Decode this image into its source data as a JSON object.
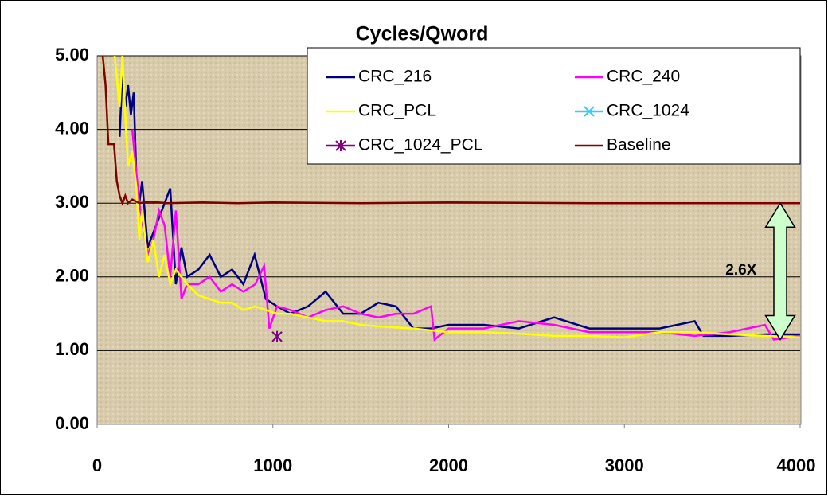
{
  "chart_data": {
    "type": "line",
    "title": "Cycles/Qword",
    "xlim": [
      0,
      4000
    ],
    "xticks": [
      0,
      1000,
      2000,
      3000,
      4000
    ],
    "ylim": [
      0,
      5
    ],
    "yticks": [
      {
        "value": 0,
        "label": "0.00"
      },
      {
        "value": 1,
        "label": "1.00"
      },
      {
        "value": 2,
        "label": "2.00"
      },
      {
        "value": 3,
        "label": "3.00"
      },
      {
        "value": 4,
        "label": "4.00"
      },
      {
        "value": 5,
        "label": "5.00"
      }
    ],
    "grid": true,
    "legend": "top",
    "annotations": [
      {
        "text": "2.6X",
        "x": 3800,
        "y": 2.0
      }
    ],
    "series": [
      {
        "name": "CRC_216",
        "color": "#000080",
        "x": [
          128,
          144,
          160,
          176,
          192,
          208,
          224,
          240,
          256,
          288,
          320,
          352,
          384,
          416,
          448,
          480,
          512,
          576,
          640,
          704,
          768,
          832,
          896,
          960,
          1024,
          1100,
          1200,
          1300,
          1400,
          1500,
          1600,
          1700,
          1800,
          1900,
          2000,
          2200,
          2400,
          2600,
          2800,
          3000,
          3200,
          3400,
          3450,
          3600,
          3800,
          4000
        ],
        "values": [
          3.9,
          4.8,
          4.3,
          4.6,
          4.2,
          4.5,
          3.3,
          3.0,
          3.3,
          2.4,
          2.6,
          2.8,
          3.0,
          3.2,
          1.9,
          2.4,
          2.0,
          2.1,
          2.3,
          2.0,
          2.1,
          1.9,
          2.3,
          1.7,
          1.6,
          1.5,
          1.6,
          1.8,
          1.5,
          1.5,
          1.65,
          1.6,
          1.3,
          1.3,
          1.35,
          1.35,
          1.3,
          1.45,
          1.3,
          1.3,
          1.3,
          1.4,
          1.2,
          1.2,
          1.22,
          1.22
        ]
      },
      {
        "name": "CRC_240",
        "color": "#ff00ff",
        "x": [
          200,
          220,
          240,
          288,
          320,
          352,
          384,
          416,
          448,
          480,
          512,
          576,
          640,
          704,
          768,
          832,
          900,
          950,
          980,
          1024,
          1100,
          1200,
          1300,
          1400,
          1500,
          1600,
          1700,
          1800,
          1900,
          1920,
          2000,
          2200,
          2400,
          2600,
          2800,
          3000,
          3200,
          3400,
          3600,
          3800,
          3850,
          4000
        ],
        "values": [
          4.0,
          3.5,
          3.0,
          2.3,
          2.5,
          2.9,
          2.7,
          2.0,
          2.9,
          1.7,
          1.9,
          1.9,
          2.0,
          1.8,
          1.9,
          1.8,
          1.9,
          2.15,
          1.3,
          1.6,
          1.55,
          1.45,
          1.55,
          1.6,
          1.5,
          1.45,
          1.5,
          1.5,
          1.6,
          1.15,
          1.3,
          1.3,
          1.4,
          1.35,
          1.25,
          1.25,
          1.25,
          1.2,
          1.25,
          1.35,
          1.15,
          1.2
        ]
      },
      {
        "name": "CRC_PCL",
        "color": "#ffff00",
        "x": [
          100,
          128,
          144,
          160,
          176,
          200,
          224,
          240,
          256,
          288,
          320,
          352,
          384,
          416,
          448,
          512,
          576,
          640,
          704,
          768,
          832,
          900,
          960,
          1024,
          1100,
          1200,
          1300,
          1400,
          1500,
          1600,
          1800,
          2000,
          2200,
          2400,
          2600,
          2800,
          3000,
          3200,
          3400,
          3600,
          3800,
          4000
        ],
        "values": [
          5.0,
          4.3,
          5.0,
          4.2,
          3.5,
          3.7,
          3.2,
          2.5,
          2.9,
          2.2,
          2.5,
          2.0,
          2.3,
          1.9,
          2.1,
          1.9,
          1.75,
          1.7,
          1.65,
          1.65,
          1.55,
          1.6,
          1.55,
          1.5,
          1.5,
          1.45,
          1.4,
          1.4,
          1.35,
          1.33,
          1.3,
          1.25,
          1.25,
          1.23,
          1.2,
          1.2,
          1.18,
          1.25,
          1.25,
          1.22,
          1.2,
          1.18
        ]
      },
      {
        "name": "CRC_1024",
        "color": "#33ccff",
        "marker": "x",
        "x": [
          1024
        ],
        "values": [
          1.19
        ]
      },
      {
        "name": "CRC_1024_PCL",
        "color": "#800080",
        "marker": "asterisk",
        "x": [
          1024
        ],
        "values": [
          1.19
        ]
      },
      {
        "name": "Baseline",
        "color": "#800000",
        "x": [
          32,
          48,
          64,
          96,
          112,
          128,
          144,
          160,
          176,
          200,
          240,
          300,
          400,
          600,
          800,
          1000,
          1500,
          2000,
          2800,
          3000,
          4000
        ],
        "values": [
          5.0,
          4.6,
          3.8,
          3.8,
          3.3,
          3.1,
          3.0,
          3.1,
          3.0,
          3.05,
          3.0,
          3.02,
          3.0,
          3.01,
          3.0,
          3.01,
          3.0,
          3.01,
          3.0,
          3.0,
          3.0
        ]
      }
    ]
  }
}
